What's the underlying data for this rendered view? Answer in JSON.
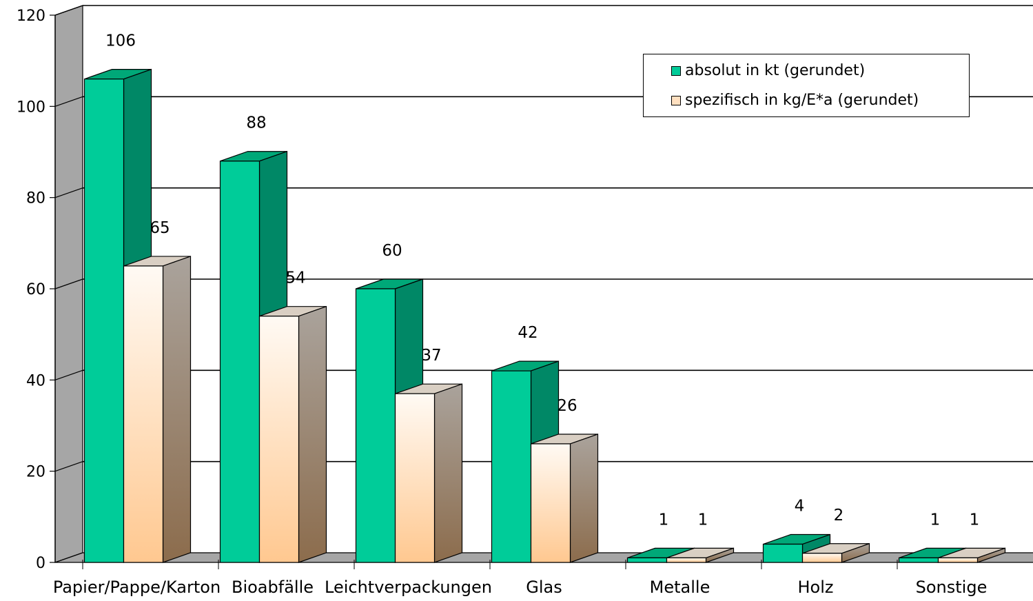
{
  "chart_data": {
    "type": "bar",
    "categories": [
      "Papier/Pappe/Karton",
      "Bioabfälle",
      "Leichtverpackungen",
      "Glas",
      "Metalle",
      "Holz",
      "Sonstige"
    ],
    "series": [
      {
        "name": "absolut in kt (gerundet)",
        "values": [
          106,
          88,
          60,
          42,
          1,
          4,
          1
        ],
        "color": "#00cc99"
      },
      {
        "name": "spezifisch in kg/E*a (gerundet)",
        "values": [
          65,
          54,
          37,
          26,
          1,
          2,
          1
        ],
        "color": "#ffcc99"
      }
    ],
    "y_ticks": [
      "0",
      "20",
      "40",
      "60",
      "80",
      "100",
      "120"
    ],
    "ylim": [
      0,
      120
    ],
    "data_labels": true,
    "style": "3d-column",
    "grid": true,
    "legend_position": "top-right"
  }
}
